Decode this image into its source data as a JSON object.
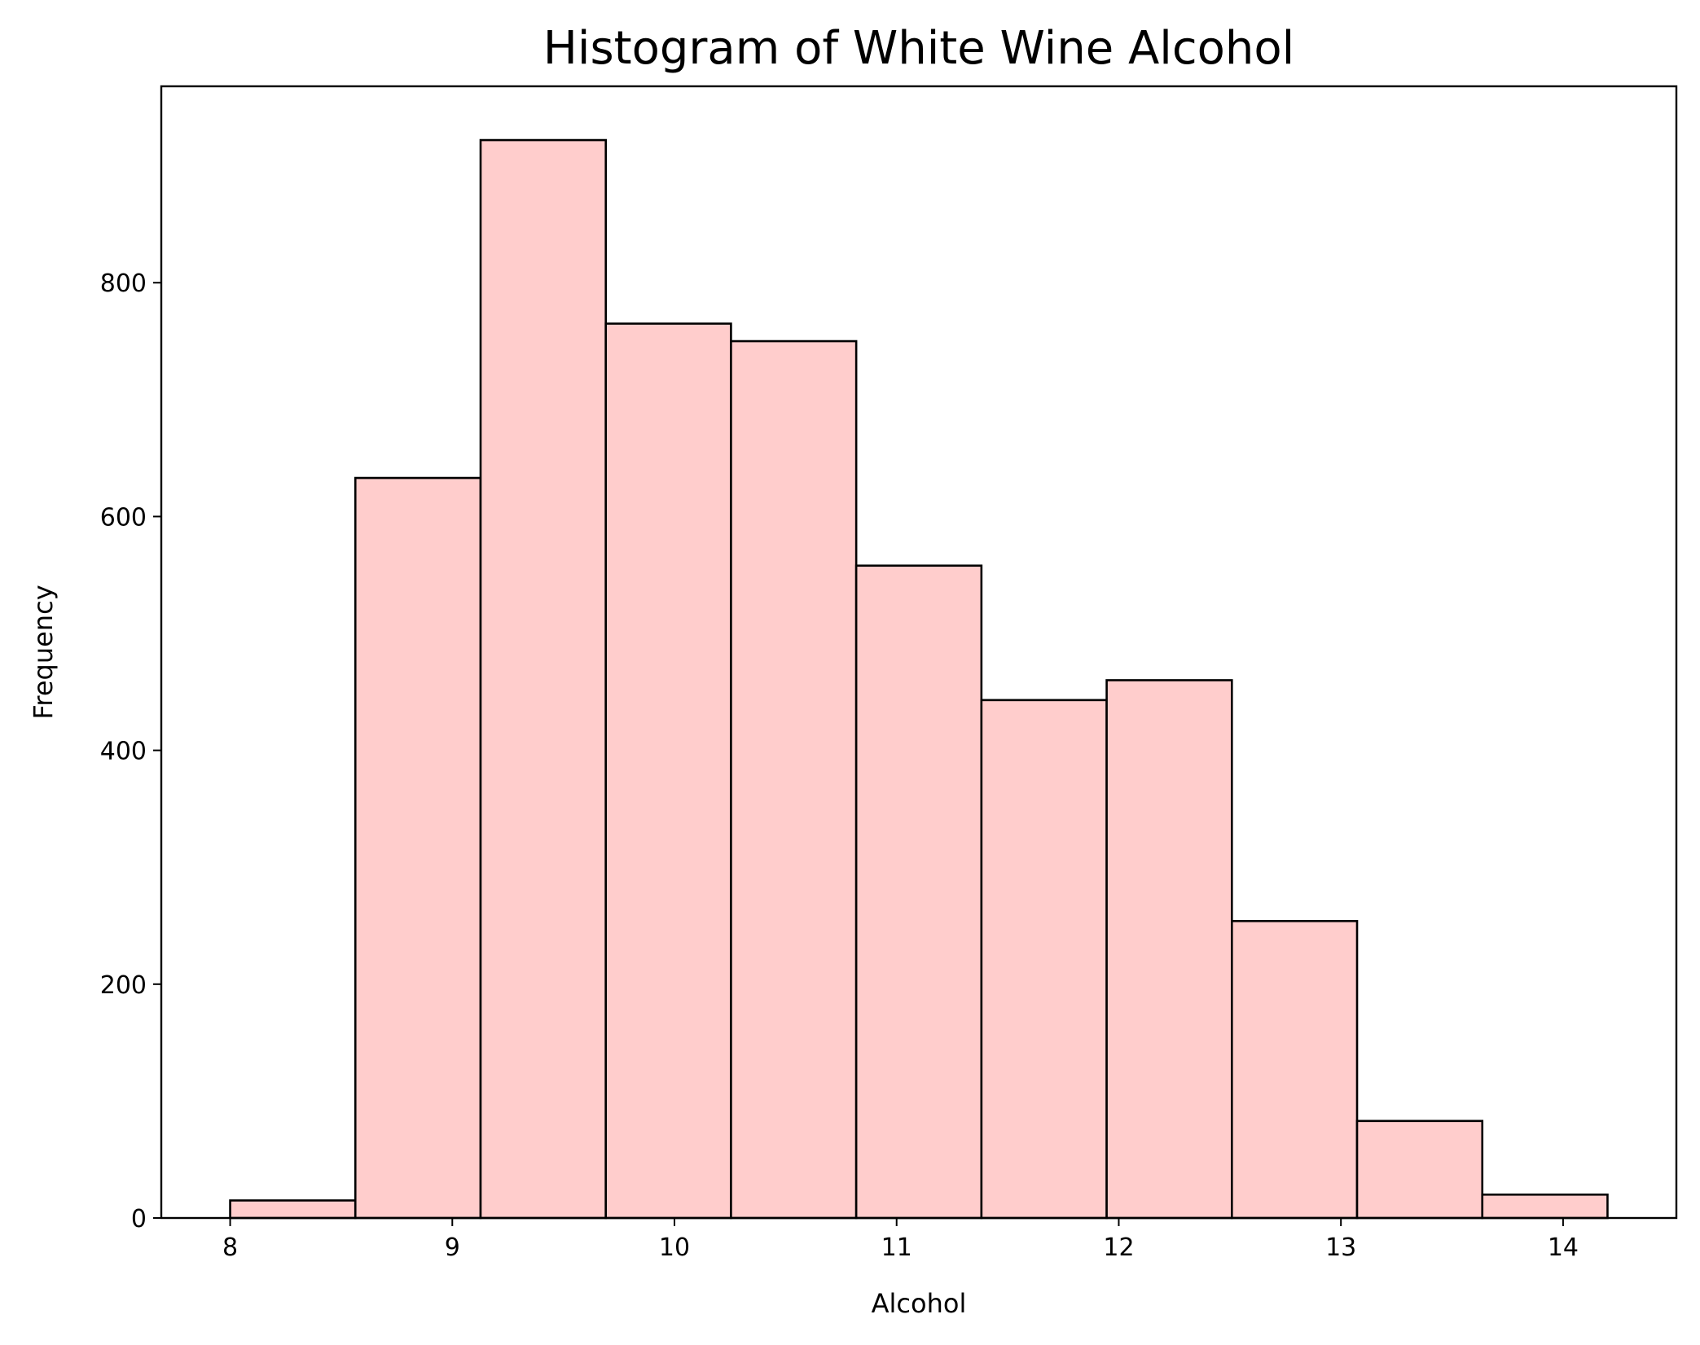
{
  "chart_data": {
    "type": "bar",
    "title": "Histogram of White Wine Alcohol",
    "xlabel": "Alcohol",
    "ylabel": "Frequency",
    "bin_edges": [
      8.0,
      8.5636,
      9.1273,
      9.6909,
      10.2545,
      10.8182,
      11.3818,
      11.9455,
      12.5091,
      13.0727,
      13.6364,
      14.2
    ],
    "values": [
      15,
      633,
      922,
      765,
      750,
      558,
      443,
      460,
      254,
      83,
      20
    ],
    "xlim": [
      7.69,
      14.51
    ],
    "ylim": [
      0,
      968
    ],
    "xticks": [
      8,
      9,
      10,
      11,
      12,
      13,
      14
    ],
    "yticks": [
      0,
      200,
      400,
      600,
      800
    ],
    "grid": false,
    "bar_color": "#ffcdcc",
    "edge_color": "#000000"
  }
}
